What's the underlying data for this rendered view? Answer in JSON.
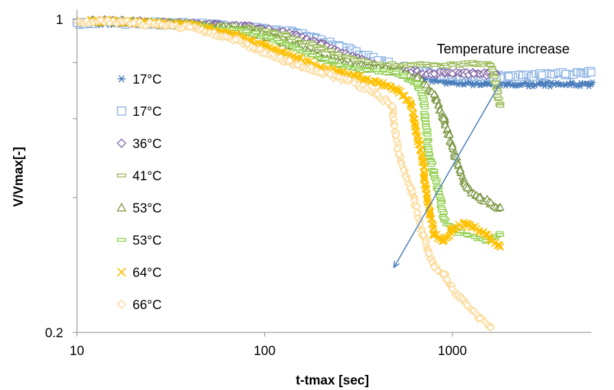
{
  "chart_data": {
    "type": "scatter",
    "title": "",
    "xlabel": "t-tmax [sec]",
    "ylabel": "V/Vmax[-]",
    "xscale": "log",
    "yscale": "log",
    "xlim": [
      10,
      5500
    ],
    "ylim": [
      0.2,
      1.05
    ],
    "x_ticks": [
      10,
      100,
      1000
    ],
    "x_tick_labels": [
      "10",
      "100",
      "1000"
    ],
    "y_tick_labels": [
      {
        "value": 1,
        "label": "1"
      },
      {
        "value": 0.2,
        "label": "0.2"
      }
    ],
    "y_minor_ticks": [
      0.8,
      0.6,
      0.4
    ],
    "grid": false,
    "legend_position": "left",
    "annotation": {
      "text": "Temperature increase",
      "arrow_from": [
        1800,
        0.72
      ],
      "arrow_to": [
        490,
        0.28
      ]
    },
    "series": [
      {
        "name": "17°C",
        "marker": "asterisk",
        "color": "#4a7ebb",
        "x": [
          10,
          20,
          40,
          80,
          150,
          250,
          400,
          600,
          800,
          1000,
          1500,
          2000,
          3000,
          4000,
          5500
        ],
        "y": [
          0.98,
          0.98,
          0.975,
          0.96,
          0.93,
          0.87,
          0.8,
          0.75,
          0.73,
          0.72,
          0.715,
          0.715,
          0.715,
          0.715,
          0.715
        ]
      },
      {
        "name": "17°C",
        "marker": "square-open",
        "color": "#8eb4e3",
        "x": [
          10,
          20,
          40,
          80,
          150,
          250,
          400,
          600,
          800,
          1000,
          1500,
          2000,
          3000,
          4000,
          5500
        ],
        "y": [
          0.98,
          0.98,
          0.975,
          0.96,
          0.93,
          0.87,
          0.81,
          0.77,
          0.755,
          0.75,
          0.745,
          0.745,
          0.75,
          0.755,
          0.76
        ]
      },
      {
        "name": "36°C",
        "marker": "diamond-open",
        "color": "#8064a2",
        "x": [
          12,
          20,
          40,
          80,
          130,
          200,
          300,
          450,
          600,
          800,
          1000,
          1300,
          1700
        ],
        "y": [
          0.99,
          0.985,
          0.975,
          0.96,
          0.93,
          0.88,
          0.82,
          0.775,
          0.76,
          0.755,
          0.755,
          0.755,
          0.755
        ]
      },
      {
        "name": "41°C",
        "marker": "dash",
        "color": "#9bbb59",
        "x": [
          12,
          20,
          40,
          80,
          130,
          200,
          300,
          450,
          600,
          800,
          1000,
          1300,
          1600,
          1700,
          1800
        ],
        "y": [
          0.99,
          0.985,
          0.975,
          0.955,
          0.92,
          0.86,
          0.81,
          0.79,
          0.79,
          0.79,
          0.79,
          0.795,
          0.79,
          0.72,
          0.64
        ]
      },
      {
        "name": "53°C",
        "marker": "triangle-open",
        "color": "#77933c",
        "x": [
          12,
          20,
          40,
          80,
          120,
          180,
          250,
          350,
          500,
          650,
          800,
          900,
          1000,
          1100,
          1200,
          1400,
          1600,
          1800
        ],
        "y": [
          0.99,
          0.985,
          0.97,
          0.945,
          0.9,
          0.84,
          0.8,
          0.78,
          0.765,
          0.74,
          0.68,
          0.6,
          0.52,
          0.46,
          0.42,
          0.4,
          0.39,
          0.38
        ]
      },
      {
        "name": "53°C",
        "marker": "dash",
        "color": "#92d050",
        "x": [
          12,
          20,
          40,
          80,
          120,
          180,
          250,
          350,
          500,
          650,
          700,
          750,
          800,
          850,
          900,
          1000,
          1200,
          1500,
          1800
        ],
        "y": [
          0.99,
          0.985,
          0.97,
          0.94,
          0.89,
          0.83,
          0.79,
          0.77,
          0.76,
          0.72,
          0.67,
          0.5,
          0.45,
          0.41,
          0.36,
          0.34,
          0.33,
          0.32,
          0.33
        ]
      },
      {
        "name": "64°C",
        "marker": "x",
        "color": "#ffc000",
        "x": [
          12,
          20,
          40,
          70,
          100,
          150,
          200,
          300,
          400,
          500,
          600,
          650,
          700,
          720,
          760,
          800,
          900,
          1000,
          1200,
          1500,
          1800
        ],
        "y": [
          0.99,
          0.985,
          0.97,
          0.92,
          0.87,
          0.82,
          0.78,
          0.75,
          0.72,
          0.7,
          0.65,
          0.55,
          0.48,
          0.42,
          0.37,
          0.33,
          0.32,
          0.34,
          0.35,
          0.33,
          0.31
        ]
      },
      {
        "name": "66°C",
        "marker": "diamond-open",
        "color": "#fcd995",
        "x": [
          10,
          20,
          40,
          70,
          100,
          150,
          200,
          300,
          400,
          480,
          500,
          520,
          550,
          600,
          650,
          700,
          750,
          800,
          900,
          1000,
          1200,
          1400,
          1600
        ],
        "y": [
          0.99,
          0.98,
          0.96,
          0.9,
          0.84,
          0.79,
          0.76,
          0.72,
          0.68,
          0.64,
          0.55,
          0.5,
          0.46,
          0.42,
          0.37,
          0.33,
          0.3,
          0.28,
          0.27,
          0.25,
          0.23,
          0.215,
          0.205
        ]
      }
    ]
  }
}
